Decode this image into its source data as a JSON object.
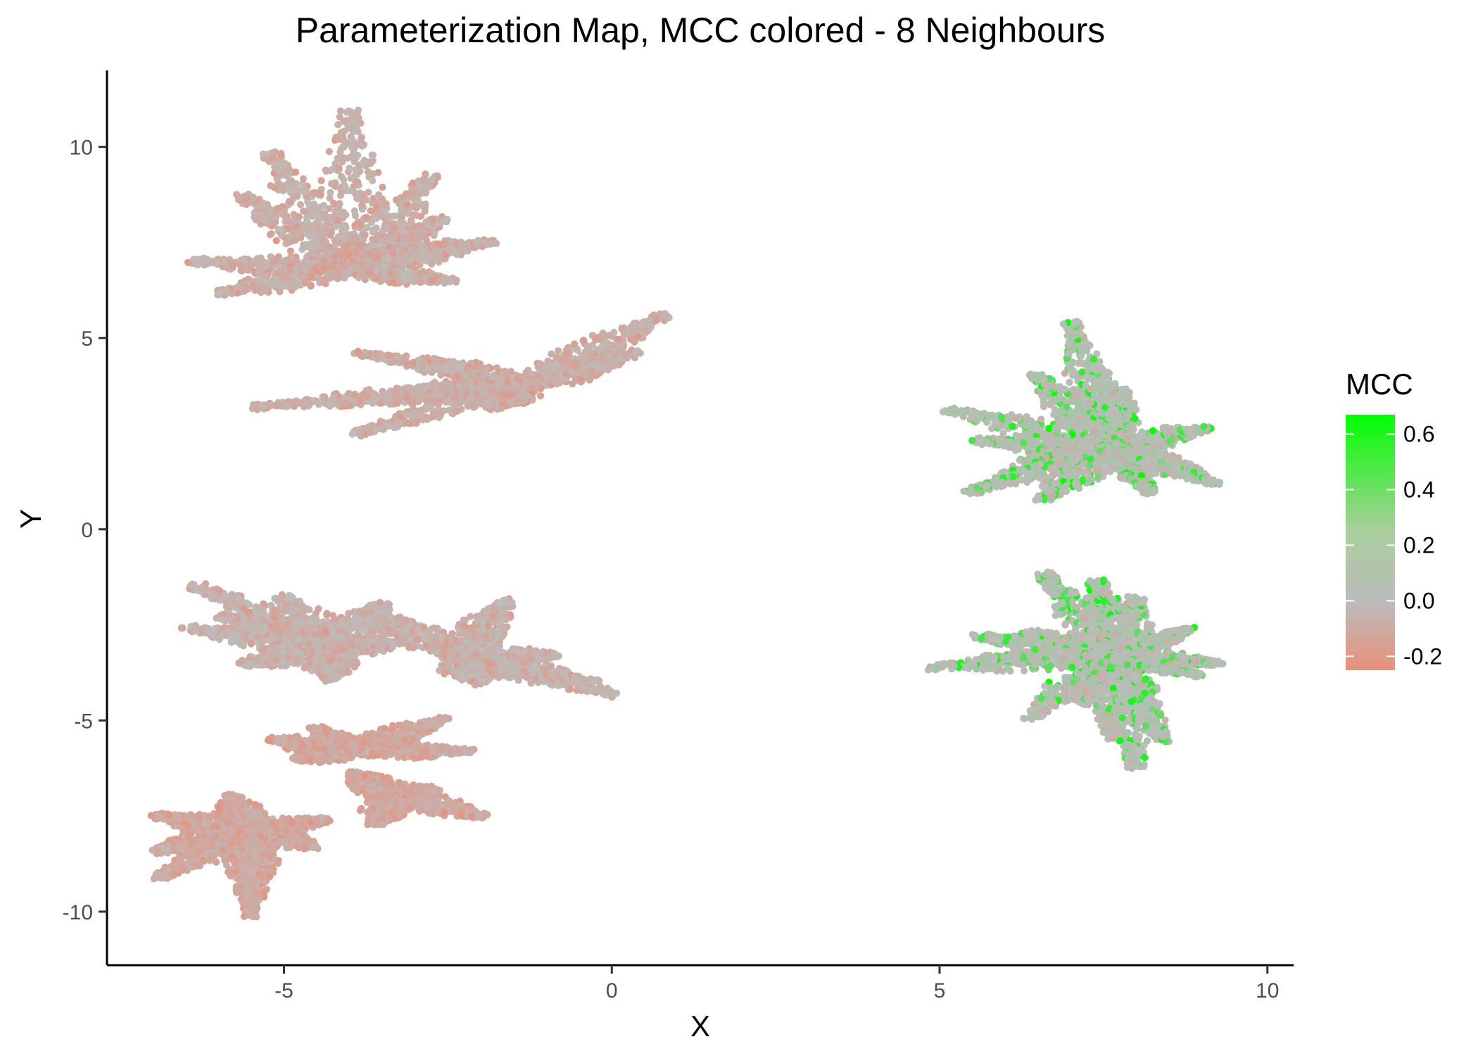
{
  "chart_data": {
    "type": "scatter",
    "title": "Parameterization Map, MCC colored - 8 Neighbours",
    "xlabel": "X",
    "ylabel": "Y",
    "xlim": [
      -7.7,
      10.4
    ],
    "ylim": [
      -11.4,
      12.0
    ],
    "x_ticks": [
      -5,
      0,
      5,
      10
    ],
    "x_tick_labels": [
      "-5",
      "0",
      "5",
      "10"
    ],
    "y_ticks": [
      -10,
      -5,
      0,
      5,
      10
    ],
    "y_tick_labels": [
      "-10",
      "-5",
      "0",
      "5",
      "10"
    ],
    "grid": false,
    "legend": {
      "title": "MCC",
      "position": "right",
      "type": "continuous",
      "range": [
        -0.25,
        0.67
      ],
      "ticks": [
        0.6,
        0.4,
        0.2,
        0.0,
        -0.2
      ],
      "tick_labels": [
        "0.6",
        "0.4",
        "0.2",
        "0.0",
        "-0.2"
      ],
      "colors": {
        "low": "#e8907a",
        "mid": "#bcbcbc",
        "high": "#00ff00"
      }
    },
    "leaves": [
      {
        "cx": -4.0,
        "cy": 6.8,
        "mcc_base": -0.05,
        "lobes": [
          [
            -4.0,
            10.9,
            0.55
          ],
          [
            -5.2,
            9.8,
            0.5
          ],
          [
            -5.6,
            8.7,
            0.5
          ],
          [
            -2.8,
            9.2,
            0.5
          ],
          [
            -2.6,
            8.1,
            0.45
          ],
          [
            -6.3,
            7.0,
            0.5
          ],
          [
            -5.9,
            6.2,
            0.5
          ],
          [
            -2.4,
            7.5,
            0.5
          ],
          [
            -1.9,
            7.5,
            0.45
          ],
          [
            -2.5,
            6.5,
            0.45
          ]
        ]
      },
      {
        "cx": -1.3,
        "cy": 3.8,
        "mcc_base": -0.05,
        "lobes": [
          [
            0.8,
            5.6,
            0.5
          ],
          [
            0.3,
            4.6,
            0.55
          ],
          [
            -2.8,
            4.4,
            0.45
          ],
          [
            -3.1,
            3.6,
            0.4
          ],
          [
            -1.8,
            3.2,
            0.45
          ],
          [
            -4.2,
            3.3,
            0.55
          ],
          [
            -3.8,
            4.6,
            0.4
          ],
          [
            -3.9,
            2.5,
            0.4
          ],
          [
            -5.4,
            3.2,
            0.45
          ]
        ]
      },
      {
        "cx": -4.3,
        "cy": -3.1,
        "mcc_base": -0.03,
        "lobes": [
          [
            -6.3,
            -1.5,
            0.5
          ],
          [
            -5.0,
            -1.8,
            0.55
          ],
          [
            -6.4,
            -2.6,
            0.5
          ],
          [
            -3.5,
            -2.0,
            0.55
          ],
          [
            -3.4,
            -3.0,
            0.5
          ],
          [
            -5.5,
            -3.5,
            0.55
          ],
          [
            -4.3,
            -3.9,
            0.45
          ],
          [
            -5.9,
            -2.3,
            0.4
          ]
        ]
      },
      {
        "cx": -2.4,
        "cy": -3.3,
        "mcc_base": -0.03,
        "lobes": [
          [
            -1.6,
            -1.9,
            0.45
          ],
          [
            -3.4,
            -2.3,
            0.45
          ],
          [
            -0.9,
            -3.3,
            0.5
          ],
          [
            0.0,
            -4.3,
            0.5
          ],
          [
            -0.3,
            -4.0,
            0.4
          ],
          [
            -2.0,
            -4.0,
            0.45
          ],
          [
            -1.8,
            -2.8,
            0.4
          ]
        ]
      },
      {
        "cx": -4.0,
        "cy": -5.8,
        "mcc_base": -0.08,
        "lobes": [
          [
            -5.1,
            -5.5,
            0.45
          ],
          [
            -2.6,
            -5.0,
            0.45
          ],
          [
            -2.2,
            -5.8,
            0.4
          ],
          [
            -4.8,
            -6.0,
            0.4
          ],
          [
            -4.5,
            -5.2,
            0.35
          ],
          [
            -3.3,
            -5.5,
            0.4
          ]
        ]
      },
      {
        "cx": -3.3,
        "cy": -7.0,
        "mcc_base": -0.08,
        "lobes": [
          [
            -3.9,
            -6.4,
            0.45
          ],
          [
            -2.0,
            -7.5,
            0.45
          ],
          [
            -2.8,
            -6.8,
            0.45
          ],
          [
            -3.6,
            -7.7,
            0.4
          ]
        ]
      },
      {
        "cx": -5.5,
        "cy": -7.9,
        "mcc_base": -0.08,
        "lobes": [
          [
            -6.9,
            -7.5,
            0.45
          ],
          [
            -5.8,
            -7.0,
            0.45
          ],
          [
            -6.9,
            -8.4,
            0.5
          ],
          [
            -4.6,
            -8.3,
            0.45
          ],
          [
            -4.4,
            -7.6,
            0.4
          ],
          [
            -6.9,
            -9.1,
            0.4
          ],
          [
            -5.5,
            -9.5,
            0.45
          ],
          [
            -5.5,
            -10.1,
            0.35
          ]
        ]
      },
      {
        "cx": 7.6,
        "cy": 2.2,
        "mcc_base": 0.05,
        "lobes": [
          [
            7.0,
            5.4,
            0.4
          ],
          [
            7.3,
            4.3,
            0.5
          ],
          [
            6.5,
            4.0,
            0.45
          ],
          [
            7.8,
            3.6,
            0.4
          ],
          [
            5.2,
            3.1,
            0.5
          ],
          [
            5.6,
            2.3,
            0.5
          ],
          [
            6.4,
            1.8,
            0.55
          ],
          [
            7.2,
            1.7,
            0.45
          ],
          [
            5.5,
            1.0,
            0.45
          ],
          [
            6.6,
            0.8,
            0.5
          ],
          [
            8.3,
            2.3,
            0.5
          ],
          [
            9.0,
            2.6,
            0.5
          ],
          [
            8.7,
            1.6,
            0.45
          ],
          [
            9.2,
            1.2,
            0.4
          ],
          [
            8.2,
            1.0,
            0.4
          ]
        ]
      },
      {
        "cx": 7.7,
        "cy": -3.3,
        "mcc_base": 0.05,
        "lobes": [
          [
            6.6,
            -1.2,
            0.45
          ],
          [
            7.4,
            -1.4,
            0.5
          ],
          [
            8.0,
            -1.8,
            0.45
          ],
          [
            5.6,
            -2.8,
            0.45
          ],
          [
            6.4,
            -2.7,
            0.5
          ],
          [
            4.9,
            -3.6,
            0.5
          ],
          [
            5.7,
            -3.4,
            0.45
          ],
          [
            6.4,
            -4.9,
            0.45
          ],
          [
            7.2,
            -4.5,
            0.45
          ],
          [
            7.6,
            -5.4,
            0.45
          ],
          [
            8.0,
            -6.2,
            0.45
          ],
          [
            8.4,
            -5.5,
            0.4
          ],
          [
            8.8,
            -2.6,
            0.35
          ],
          [
            9.2,
            -3.5,
            0.4
          ],
          [
            8.9,
            -3.8,
            0.35
          ]
        ]
      }
    ]
  }
}
